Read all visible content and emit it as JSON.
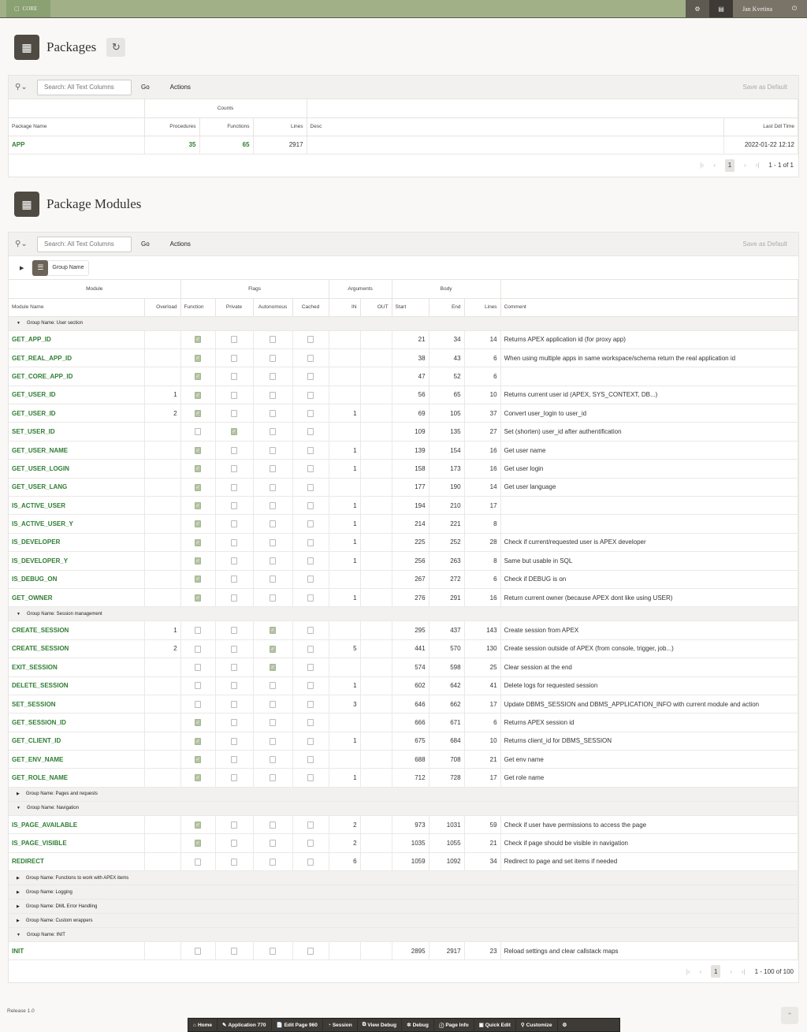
{
  "topbar": {
    "app": "CORE",
    "user": "Jan Kvetina"
  },
  "packages": {
    "title": "Packages",
    "search_placeholder": "Search: All Text Columns",
    "go": "Go",
    "actions": "Actions",
    "save_default": "Save as Default",
    "group_header": "Counts",
    "columns": [
      "Package Name",
      "Procedures",
      "Functions",
      "Lines",
      "Desc",
      "Last Ddl Time"
    ],
    "rows": [
      {
        "name": "APP",
        "procedures": "35",
        "functions": "65",
        "lines": "2917",
        "desc": "",
        "last_ddl": "2022-01-22 12:12"
      }
    ],
    "page": "1",
    "range": "1 - 1 of 1"
  },
  "modules": {
    "title": "Package Modules",
    "search_placeholder": "Search: All Text Columns",
    "go": "Go",
    "actions": "Actions",
    "save_default": "Save as Default",
    "group_chip": "Group Name",
    "group_headers": [
      "Module",
      "Flags",
      "Arguments",
      "Body",
      ""
    ],
    "columns": [
      "Module Name",
      "Overload",
      "Function",
      "Private",
      "Autonomous",
      "Cached",
      "IN",
      "OUT",
      "Start",
      "End",
      "Lines",
      "Comment"
    ],
    "groups": [
      {
        "label": "Group Name: User section",
        "expanded": true,
        "rows": [
          [
            "GET_APP_ID",
            "",
            1,
            0,
            0,
            0,
            "",
            "",
            "21",
            "34",
            "14",
            "Returns APEX application id (for proxy app)"
          ],
          [
            "GET_REAL_APP_ID",
            "",
            1,
            0,
            0,
            0,
            "",
            "",
            "38",
            "43",
            "6",
            "When using multiple apps in same workspace/schema return the real application id"
          ],
          [
            "GET_CORE_APP_ID",
            "",
            1,
            0,
            0,
            0,
            "",
            "",
            "47",
            "52",
            "6",
            ""
          ],
          [
            "GET_USER_ID",
            "1",
            1,
            0,
            0,
            0,
            "",
            "",
            "56",
            "65",
            "10",
            "Returns current user id (APEX, SYS_CONTEXT, DB...)"
          ],
          [
            "GET_USER_ID",
            "2",
            1,
            0,
            0,
            0,
            "1",
            "",
            "69",
            "105",
            "37",
            "Convert user_login to user_id"
          ],
          [
            "SET_USER_ID",
            "",
            0,
            1,
            0,
            0,
            "",
            "",
            "109",
            "135",
            "27",
            "Set (shorten) user_id after authentification"
          ],
          [
            "GET_USER_NAME",
            "",
            1,
            0,
            0,
            0,
            "1",
            "",
            "139",
            "154",
            "16",
            "Get user name"
          ],
          [
            "GET_USER_LOGIN",
            "",
            1,
            0,
            0,
            0,
            "1",
            "",
            "158",
            "173",
            "16",
            "Get user login"
          ],
          [
            "GET_USER_LANG",
            "",
            1,
            0,
            0,
            0,
            "",
            "",
            "177",
            "190",
            "14",
            "Get user language"
          ],
          [
            "IS_ACTIVE_USER",
            "",
            1,
            0,
            0,
            0,
            "1",
            "",
            "194",
            "210",
            "17",
            ""
          ],
          [
            "IS_ACTIVE_USER_Y",
            "",
            1,
            0,
            0,
            0,
            "1",
            "",
            "214",
            "221",
            "8",
            ""
          ],
          [
            "IS_DEVELOPER",
            "",
            1,
            0,
            0,
            0,
            "1",
            "",
            "225",
            "252",
            "28",
            "Check if current/requested user is APEX developer"
          ],
          [
            "IS_DEVELOPER_Y",
            "",
            1,
            0,
            0,
            0,
            "1",
            "",
            "256",
            "263",
            "8",
            "Same but usable in SQL"
          ],
          [
            "IS_DEBUG_ON",
            "",
            1,
            0,
            0,
            0,
            "",
            "",
            "267",
            "272",
            "6",
            "Check if DEBUG is on"
          ],
          [
            "GET_OWNER",
            "",
            1,
            0,
            0,
            0,
            "1",
            "",
            "276",
            "291",
            "16",
            "Return current owner (because APEX dont like using USER)"
          ]
        ]
      },
      {
        "label": "Group Name: Session management",
        "expanded": true,
        "rows": [
          [
            "CREATE_SESSION",
            "1",
            0,
            0,
            1,
            0,
            "",
            "",
            "295",
            "437",
            "143",
            "Create session from APEX"
          ],
          [
            "CREATE_SESSION",
            "2",
            0,
            0,
            1,
            0,
            "5",
            "",
            "441",
            "570",
            "130",
            "Create session outside of APEX (from console, trigger, job...)"
          ],
          [
            "EXIT_SESSION",
            "",
            0,
            0,
            1,
            0,
            "",
            "",
            "574",
            "598",
            "25",
            "Clear session at the end"
          ],
          [
            "DELETE_SESSION",
            "",
            0,
            0,
            0,
            0,
            "1",
            "",
            "602",
            "642",
            "41",
            "Delete logs for requested session"
          ],
          [
            "SET_SESSION",
            "",
            0,
            0,
            0,
            0,
            "3",
            "",
            "646",
            "662",
            "17",
            "Update DBMS_SESSION and DBMS_APPLICATION_INFO with current module and action"
          ],
          [
            "GET_SESSION_ID",
            "",
            1,
            0,
            0,
            0,
            "",
            "",
            "666",
            "671",
            "6",
            "Returns APEX session id"
          ],
          [
            "GET_CLIENT_ID",
            "",
            1,
            0,
            0,
            0,
            "1",
            "",
            "675",
            "684",
            "10",
            "Returns client_id for DBMS_SESSION"
          ],
          [
            "GET_ENV_NAME",
            "",
            1,
            0,
            0,
            0,
            "",
            "",
            "688",
            "708",
            "21",
            "Get env name"
          ],
          [
            "GET_ROLE_NAME",
            "",
            1,
            0,
            0,
            0,
            "1",
            "",
            "712",
            "728",
            "17",
            "Get role name"
          ]
        ]
      },
      {
        "label": "Group Name: Pages and requests",
        "expanded": false,
        "rows": []
      },
      {
        "label": "Group Name: Navigation",
        "expanded": true,
        "rows": [
          [
            "IS_PAGE_AVAILABLE",
            "",
            1,
            0,
            0,
            0,
            "2",
            "",
            "973",
            "1031",
            "59",
            "Check if user have permissions to access the page"
          ],
          [
            "IS_PAGE_VISIBLE",
            "",
            1,
            0,
            0,
            0,
            "2",
            "",
            "1035",
            "1055",
            "21",
            "Check if page should be visible in navigation"
          ],
          [
            "REDIRECT",
            "",
            0,
            0,
            0,
            0,
            "6",
            "",
            "1059",
            "1092",
            "34",
            "Redirect to page and set items if needed"
          ]
        ]
      },
      {
        "label": "Group Name: Functions to work with APEX items",
        "expanded": false,
        "rows": []
      },
      {
        "label": "Group Name: Logging",
        "expanded": false,
        "rows": []
      },
      {
        "label": "Group Name: DML Error Handling",
        "expanded": false,
        "rows": []
      },
      {
        "label": "Group Name: Custom wrappers",
        "expanded": false,
        "rows": []
      },
      {
        "label": "Group Name: INIT",
        "expanded": true,
        "rows": [
          [
            "INIT",
            "",
            0,
            0,
            0,
            0,
            "",
            "",
            "2895",
            "2917",
            "23",
            "Reload settings and clear callstack maps"
          ]
        ]
      }
    ],
    "page": "1",
    "range": "1 - 100 of 100"
  },
  "footer": {
    "release": "Release 1.0"
  },
  "devbar": [
    "Home",
    "Application 770",
    "Edit Page 960",
    "Session",
    "View Debug",
    "Debug",
    "Page Info",
    "Quick Edit",
    "Customize"
  ],
  "colors": {
    "topbar": "#a1b087",
    "link": "#2f7d32",
    "devbar": "#3e3a35"
  }
}
